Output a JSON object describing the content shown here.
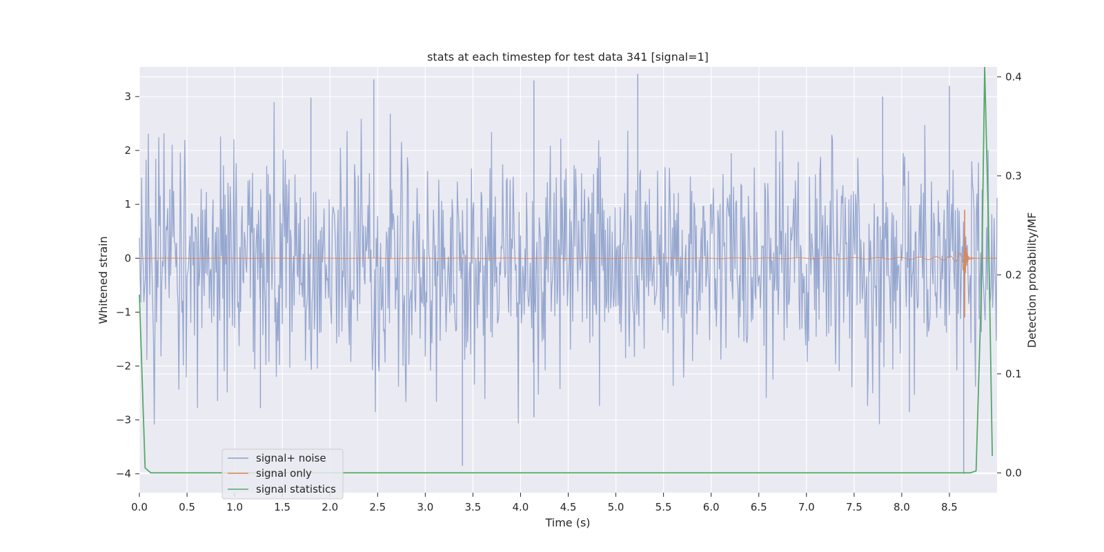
{
  "chart_data": {
    "type": "line",
    "title": "stats at each timestep for test data 341 [signal=1]",
    "xlabel": "Time (s)",
    "ylabel": "Whitened strain",
    "y2label": "Detection probability/MF",
    "xlim": [
      0.0,
      9.0
    ],
    "ylim": [
      -4.35,
      3.55
    ],
    "y2lim": [
      -0.02,
      0.41
    ],
    "x_ticks": [
      "0.0",
      "0.5",
      "1.0",
      "1.5",
      "2.0",
      "2.5",
      "3.0",
      "3.5",
      "4.0",
      "4.5",
      "5.0",
      "5.5",
      "6.0",
      "6.5",
      "7.0",
      "7.5",
      "8.0",
      "8.5"
    ],
    "y_ticks": [
      "3",
      "2",
      "1",
      "0",
      "−1",
      "−2",
      "−3",
      "−4"
    ],
    "y2_ticks": [
      "0.4",
      "0.3",
      "0.2",
      "0.1",
      "0.0"
    ],
    "grid": true,
    "legend_position": "lower-left",
    "colors": {
      "noise": "#8da0cb",
      "signal": "#dd8452",
      "stat": "#55a868",
      "background": "#eaeaf2",
      "grid": "#ffffff"
    },
    "series": [
      {
        "name": "signal+ noise",
        "axis": "left",
        "description": "Whitened noisy strain, dense random trace spanning roughly -4 to 3.4",
        "sampling_rate_hz": 128,
        "notable_peaks": [
          [
            2.46,
            3.32
          ],
          [
            4.14,
            3.3
          ],
          [
            5.23,
            3.42
          ],
          [
            8.5,
            3.2
          ],
          [
            1.8,
            2.98
          ],
          [
            7.8,
            3.0
          ]
        ],
        "notable_troughs": [
          [
            3.39,
            -3.85
          ],
          [
            8.65,
            -4.0
          ],
          [
            4.14,
            -2.95
          ],
          [
            1.27,
            -2.78
          ],
          [
            8.08,
            -2.85
          ]
        ]
      },
      {
        "name": "signal only",
        "axis": "left",
        "description": "Chirp waveform with amplitude growing toward merger near t = 8.66 s",
        "merger_time": 8.66,
        "peak_amplitude": 0.9,
        "trough_amplitude": -1.1
      },
      {
        "name": "signal statistics",
        "axis": "right",
        "x": [
          0.0,
          0.06,
          0.12,
          0.2,
          1.0,
          2.0,
          3.0,
          4.0,
          5.0,
          6.0,
          7.0,
          8.0,
          8.6,
          8.72,
          8.78,
          8.84,
          8.87,
          8.91,
          8.95
        ],
        "y": [
          0.18,
          0.005,
          0.0,
          0.0,
          0.0,
          0.0,
          0.0,
          0.0,
          0.0,
          0.0,
          0.0,
          0.0,
          0.0,
          0.0,
          0.002,
          0.2,
          0.41,
          0.25,
          0.017
        ]
      }
    ]
  }
}
